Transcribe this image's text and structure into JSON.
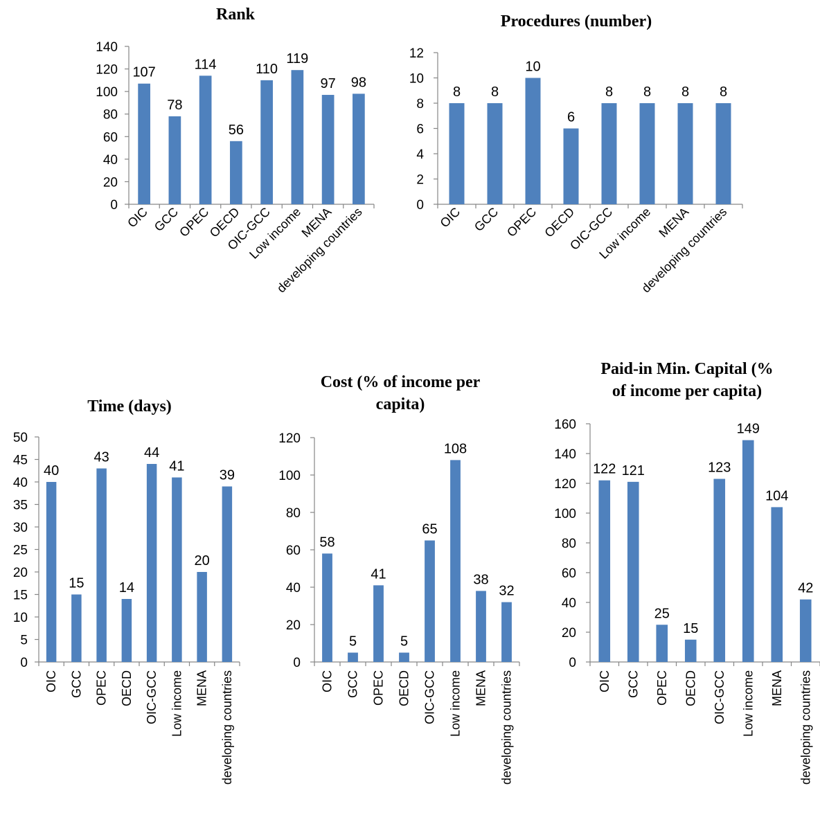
{
  "chart_data": [
    {
      "type": "bar",
      "title": [
        "Rank"
      ],
      "categories": [
        "OIC",
        "GCC",
        "OPEC",
        "OECD",
        "OIC-GCC",
        "Low income",
        "MENA",
        "developing countries"
      ],
      "values": [
        107,
        78,
        114,
        56,
        110,
        119,
        97,
        98
      ],
      "ylim": [
        0,
        140
      ],
      "yticks": [
        0,
        20,
        40,
        60,
        80,
        100,
        120,
        140
      ],
      "label_orientation": "diagonal",
      "colors": {
        "bar": "#4f81bd"
      }
    },
    {
      "type": "bar",
      "title": [
        "Procedures (number)"
      ],
      "categories": [
        "OIC",
        "GCC",
        "OPEC",
        "OECD",
        "OIC-GCC",
        "Low income",
        "MENA",
        "developing countries"
      ],
      "values": [
        8,
        8,
        10,
        6,
        8,
        8,
        8,
        8
      ],
      "ylim": [
        0,
        12
      ],
      "yticks": [
        0,
        2,
        4,
        6,
        8,
        10,
        12
      ],
      "label_orientation": "diagonal",
      "colors": {
        "bar": "#4f81bd"
      }
    },
    {
      "type": "bar",
      "title": [
        "Time (days)"
      ],
      "categories": [
        "OIC",
        "GCC",
        "OPEC",
        "OECD",
        "OIC-GCC",
        "Low income",
        "MENA",
        "developing countries"
      ],
      "values": [
        40,
        15,
        43,
        14,
        44,
        41,
        20,
        39
      ],
      "ylim": [
        0,
        50
      ],
      "yticks": [
        0,
        5,
        10,
        15,
        20,
        25,
        30,
        35,
        40,
        45,
        50
      ],
      "label_orientation": "vertical",
      "colors": {
        "bar": "#4f81bd"
      }
    },
    {
      "type": "bar",
      "title": [
        "Cost   (% of income per",
        "capita)"
      ],
      "categories": [
        "OIC",
        "GCC",
        "OPEC",
        "OECD",
        "OIC-GCC",
        "Low income",
        "MENA",
        "developing countries"
      ],
      "values": [
        58,
        5,
        41,
        5,
        65,
        108,
        38,
        32
      ],
      "ylim": [
        0,
        120
      ],
      "yticks": [
        0,
        20,
        40,
        60,
        80,
        100,
        120
      ],
      "label_orientation": "vertical",
      "colors": {
        "bar": "#4f81bd"
      }
    },
    {
      "type": "bar",
      "title": [
        "Paid-in Min. Capital (%",
        "of income per capita)"
      ],
      "categories": [
        "OIC",
        "GCC",
        "OPEC",
        "OECD",
        "OIC-GCC",
        "Low income",
        "MENA",
        "developing countries"
      ],
      "values": [
        122,
        121,
        25,
        15,
        123,
        149,
        104,
        42
      ],
      "ylim": [
        0,
        160
      ],
      "yticks": [
        0,
        20,
        40,
        60,
        80,
        100,
        120,
        140,
        160
      ],
      "label_orientation": "vertical",
      "colors": {
        "bar": "#4f81bd"
      }
    }
  ]
}
